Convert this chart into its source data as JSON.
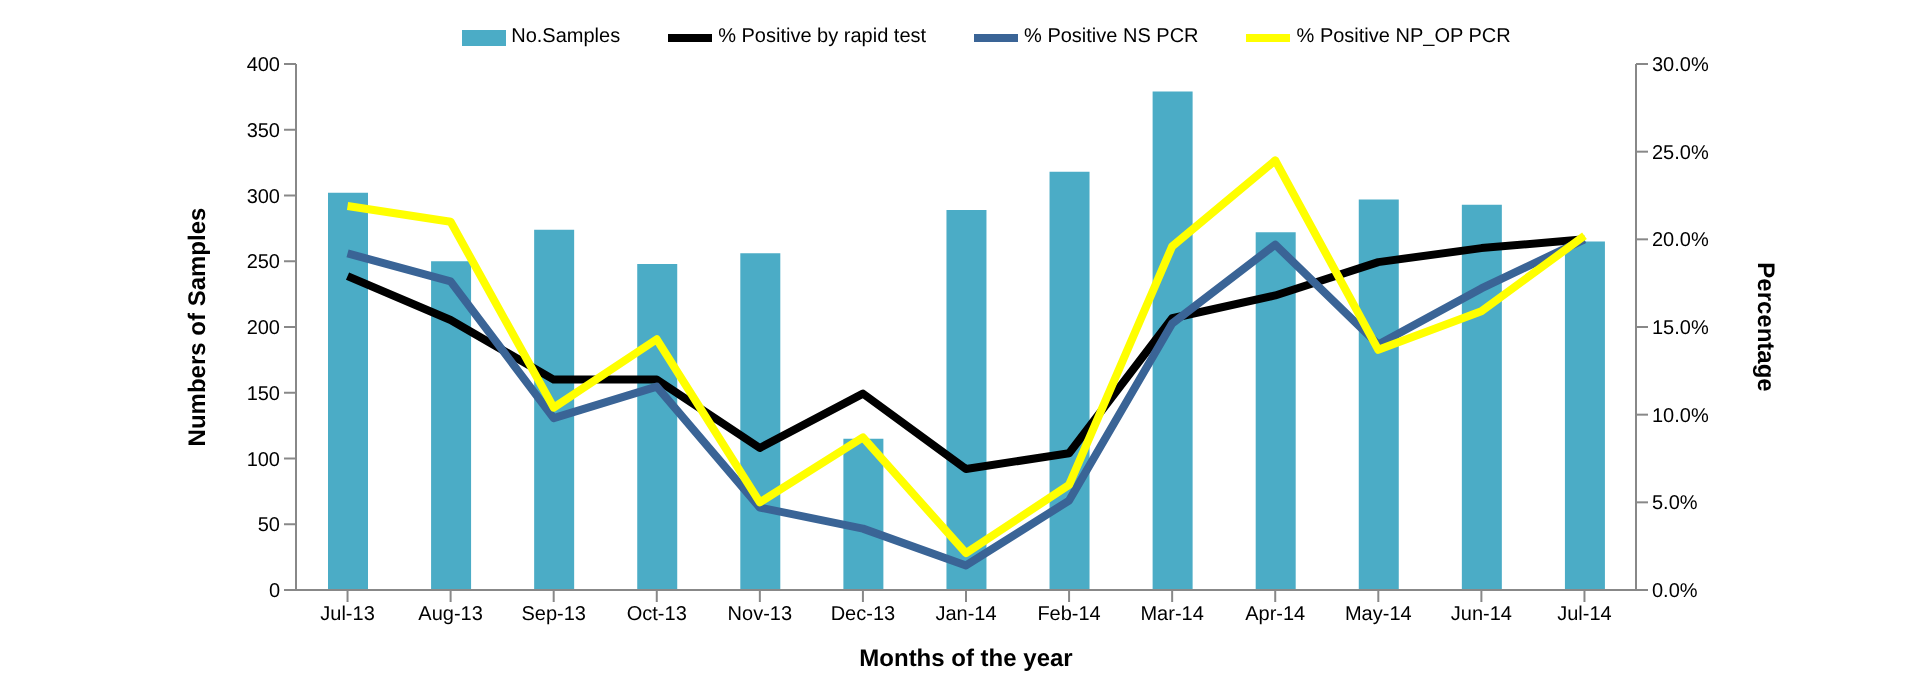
{
  "chart_data": {
    "type": "bar",
    "xlabel": "Months of the year",
    "ylabel": "Numbers of Samples",
    "y2label": "Percentage",
    "categories": [
      "Jul-13",
      "Aug-13",
      "Sep-13",
      "Oct-13",
      "Nov-13",
      "Dec-13",
      "Jan-14",
      "Feb-14",
      "Mar-14",
      "Apr-14",
      "May-14",
      "Jun-14",
      "Jul-14"
    ],
    "series": [
      {
        "name": "No.Samples",
        "color": "#4bacc6",
        "values": [
          302,
          250,
          274,
          248,
          256,
          115,
          289,
          318,
          379,
          272,
          297,
          293,
          265
        ]
      },
      {
        "name": "% Positive by rapid test",
        "type": "line",
        "axis": "y2",
        "color": "#000000",
        "values": [
          17.9,
          15.4,
          12.0,
          12.0,
          8.1,
          11.2,
          6.9,
          7.8,
          15.5,
          16.8,
          18.7,
          19.5,
          20.0
        ]
      },
      {
        "name": "% Positive NS PCR",
        "type": "line",
        "axis": "y2",
        "color": "#3a6496",
        "values": [
          19.2,
          17.6,
          9.8,
          11.6,
          4.7,
          3.5,
          1.4,
          5.1,
          15.2,
          19.7,
          14.0,
          17.2,
          20.0
        ]
      },
      {
        "name": "% Positive NP_OP PCR",
        "type": "line",
        "axis": "y2",
        "color": "#ffff00",
        "values": [
          21.9,
          21.0,
          10.4,
          14.3,
          5.0,
          8.7,
          2.1,
          6.0,
          19.6,
          24.5,
          13.7,
          15.9,
          20.2
        ]
      }
    ],
    "ylim": [
      0,
      400
    ],
    "yticks": [
      0,
      50,
      100,
      150,
      200,
      250,
      300,
      350,
      400
    ],
    "y2lim": [
      0,
      30
    ],
    "y2ticks": [
      {
        "value": 0,
        "label": "0.0%"
      },
      {
        "value": 5,
        "label": "5.0%"
      },
      {
        "value": 10,
        "label": "10.0%"
      },
      {
        "value": 15,
        "label": "15.0%"
      },
      {
        "value": 20,
        "label": "20.0%"
      },
      {
        "value": 25,
        "label": "25.0%"
      },
      {
        "value": 30,
        "label": "30.0%"
      }
    ],
    "legend": "top",
    "marker": "none",
    "grid": false
  }
}
